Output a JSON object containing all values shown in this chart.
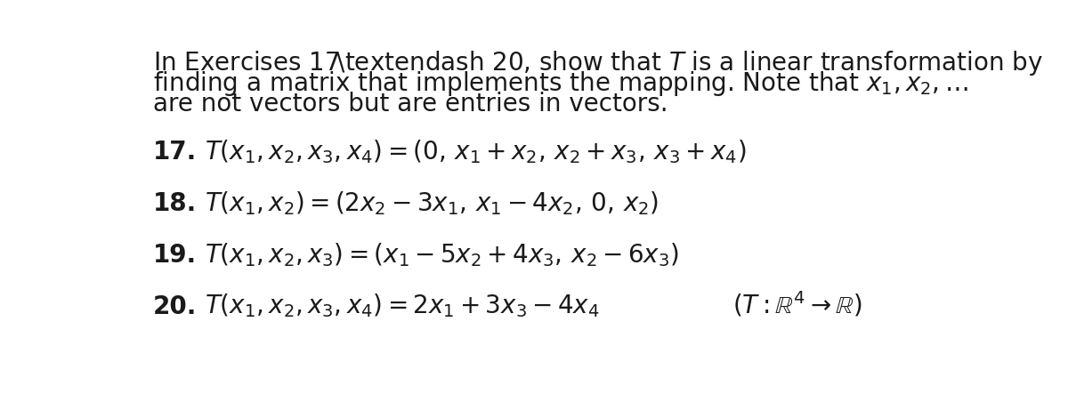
{
  "background_color": "#ffffff",
  "figsize": [
    12.0,
    4.61
  ],
  "dpi": 100,
  "text_color": "#1a1a1a",
  "intro_lines": [
    [
      "In Exercises 17–20, show that ",
      "T",
      " is a linear transformation by"
    ],
    [
      "finding a matrix that implements the mapping. Note that ",
      "x_1, x_2, \\ldots"
    ],
    [
      "are not vectors but are entries in vectors."
    ]
  ],
  "exercises": [
    {
      "number": "17.",
      "formula": "T(x_1, x_2, x_3, x_4) = (0,\\, x_1 + x_2,\\, x_2 + x_3,\\, x_3 + x_4)"
    },
    {
      "number": "18.",
      "formula": "T(x_1, x_2) = (2x_2 - 3x_1,\\, x_1 - 4x_2,\\, 0,\\, x_2)"
    },
    {
      "number": "19.",
      "formula": "T(x_1, x_2, x_3) = (x_1 - 5x_2 + 4x_3,\\, x_2 - 6x_3)"
    },
    {
      "number": "20.",
      "formula": "T(x_1, x_2, x_3, x_4) = 2x_1 + 3x_3 - 4x_4",
      "extra": "(T : \\mathbb{R}^4 \\to \\mathbb{R})"
    }
  ]
}
